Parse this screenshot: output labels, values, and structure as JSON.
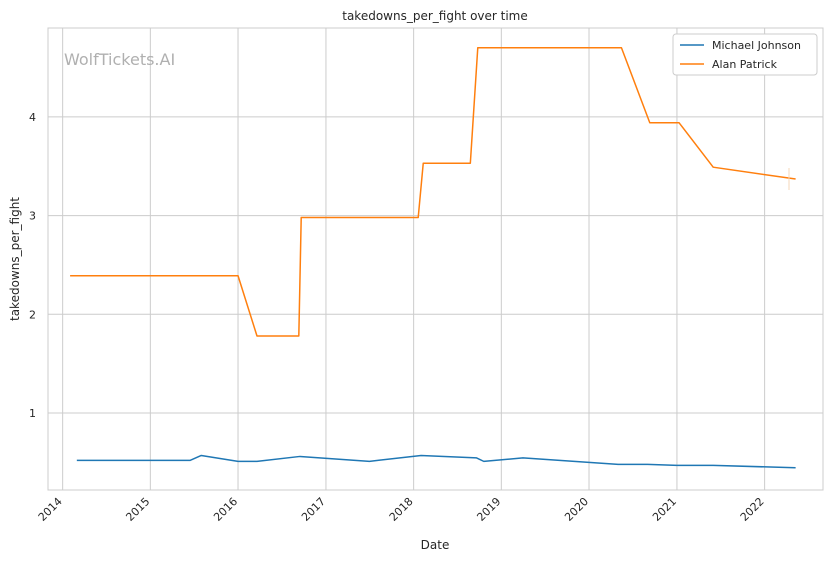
{
  "chart_data": {
    "type": "line",
    "title": "takedowns_per_fight over time",
    "xlabel": "Date",
    "ylabel": "takedowns_per_fight",
    "watermark": "WolfTickets.AI",
    "grid": true,
    "legend_position": "top-right",
    "xlim": [
      "2013-11-01",
      "2022-09-01"
    ],
    "ylim": [
      0.22,
      4.9
    ],
    "x_ticks": [
      "2014",
      "2015",
      "2016",
      "2017",
      "2018",
      "2019",
      "2020",
      "2021",
      "2022"
    ],
    "y_ticks": [
      1,
      2,
      3,
      4
    ],
    "series": [
      {
        "name": "Michael Johnson",
        "color": "#1f77b4",
        "points": [
          [
            "2014-03-01",
            0.52
          ],
          [
            "2015-06-15",
            0.52
          ],
          [
            "2015-08-01",
            0.57
          ],
          [
            "2016-01-01",
            0.51
          ],
          [
            "2016-03-20",
            0.51
          ],
          [
            "2016-09-15",
            0.56
          ],
          [
            "2017-07-01",
            0.51
          ],
          [
            "2018-02-01",
            0.57
          ],
          [
            "2018-09-20",
            0.545
          ],
          [
            "2018-10-20",
            0.51
          ],
          [
            "2019-04-01",
            0.545
          ],
          [
            "2020-05-01",
            0.48
          ],
          [
            "2020-09-01",
            0.48
          ],
          [
            "2021-01-01",
            0.47
          ],
          [
            "2021-06-01",
            0.47
          ],
          [
            "2022-05-10",
            0.445
          ]
        ]
      },
      {
        "name": "Alan Patrick",
        "color": "#ff7f0e",
        "points": [
          [
            "2014-02-01",
            2.39
          ],
          [
            "2016-01-01",
            2.39
          ],
          [
            "2016-03-20",
            1.78
          ],
          [
            "2016-09-10",
            1.78
          ],
          [
            "2016-09-20",
            2.98
          ],
          [
            "2018-01-20",
            2.98
          ],
          [
            "2018-02-10",
            3.53
          ],
          [
            "2018-08-25",
            3.53
          ],
          [
            "2018-09-25",
            4.7
          ],
          [
            "2020-05-15",
            4.7
          ],
          [
            "2020-09-10",
            3.94
          ],
          [
            "2021-01-10",
            3.94
          ],
          [
            "2021-06-01",
            3.49
          ],
          [
            "2022-05-10",
            3.37
          ]
        ]
      }
    ]
  }
}
